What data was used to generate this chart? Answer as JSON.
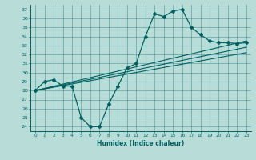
{
  "title": "",
  "xlabel": "Humidex (Indice chaleur)",
  "bg_color": "#b8ddd8",
  "line_color": "#006060",
  "xlim": [
    -0.5,
    23.5
  ],
  "ylim": [
    23.5,
    37.5
  ],
  "xticks": [
    0,
    1,
    2,
    3,
    4,
    5,
    6,
    7,
    8,
    9,
    10,
    11,
    12,
    13,
    14,
    15,
    16,
    17,
    18,
    19,
    20,
    21,
    22,
    23
  ],
  "yticks": [
    24,
    25,
    26,
    27,
    28,
    29,
    30,
    31,
    32,
    33,
    34,
    35,
    36,
    37
  ],
  "curve1_x": [
    0,
    1,
    2,
    3,
    4,
    5,
    6,
    7,
    8,
    9,
    10,
    11,
    12,
    13,
    14,
    15,
    16,
    17,
    18,
    19,
    20,
    21,
    22,
    23
  ],
  "curve1_y": [
    28.0,
    29.0,
    29.2,
    28.5,
    28.5,
    25.0,
    24.0,
    24.0,
    26.5,
    28.5,
    30.5,
    31.0,
    34.0,
    36.5,
    36.2,
    36.8,
    37.0,
    35.0,
    34.2,
    33.5,
    33.3,
    33.3,
    33.2,
    33.3
  ],
  "line1_x": [
    0,
    23
  ],
  "line1_y": [
    28.0,
    33.5
  ],
  "line2_x": [
    0,
    23
  ],
  "line2_y": [
    28.0,
    32.8
  ],
  "line3_x": [
    0,
    23
  ],
  "line3_y": [
    28.0,
    32.2
  ]
}
